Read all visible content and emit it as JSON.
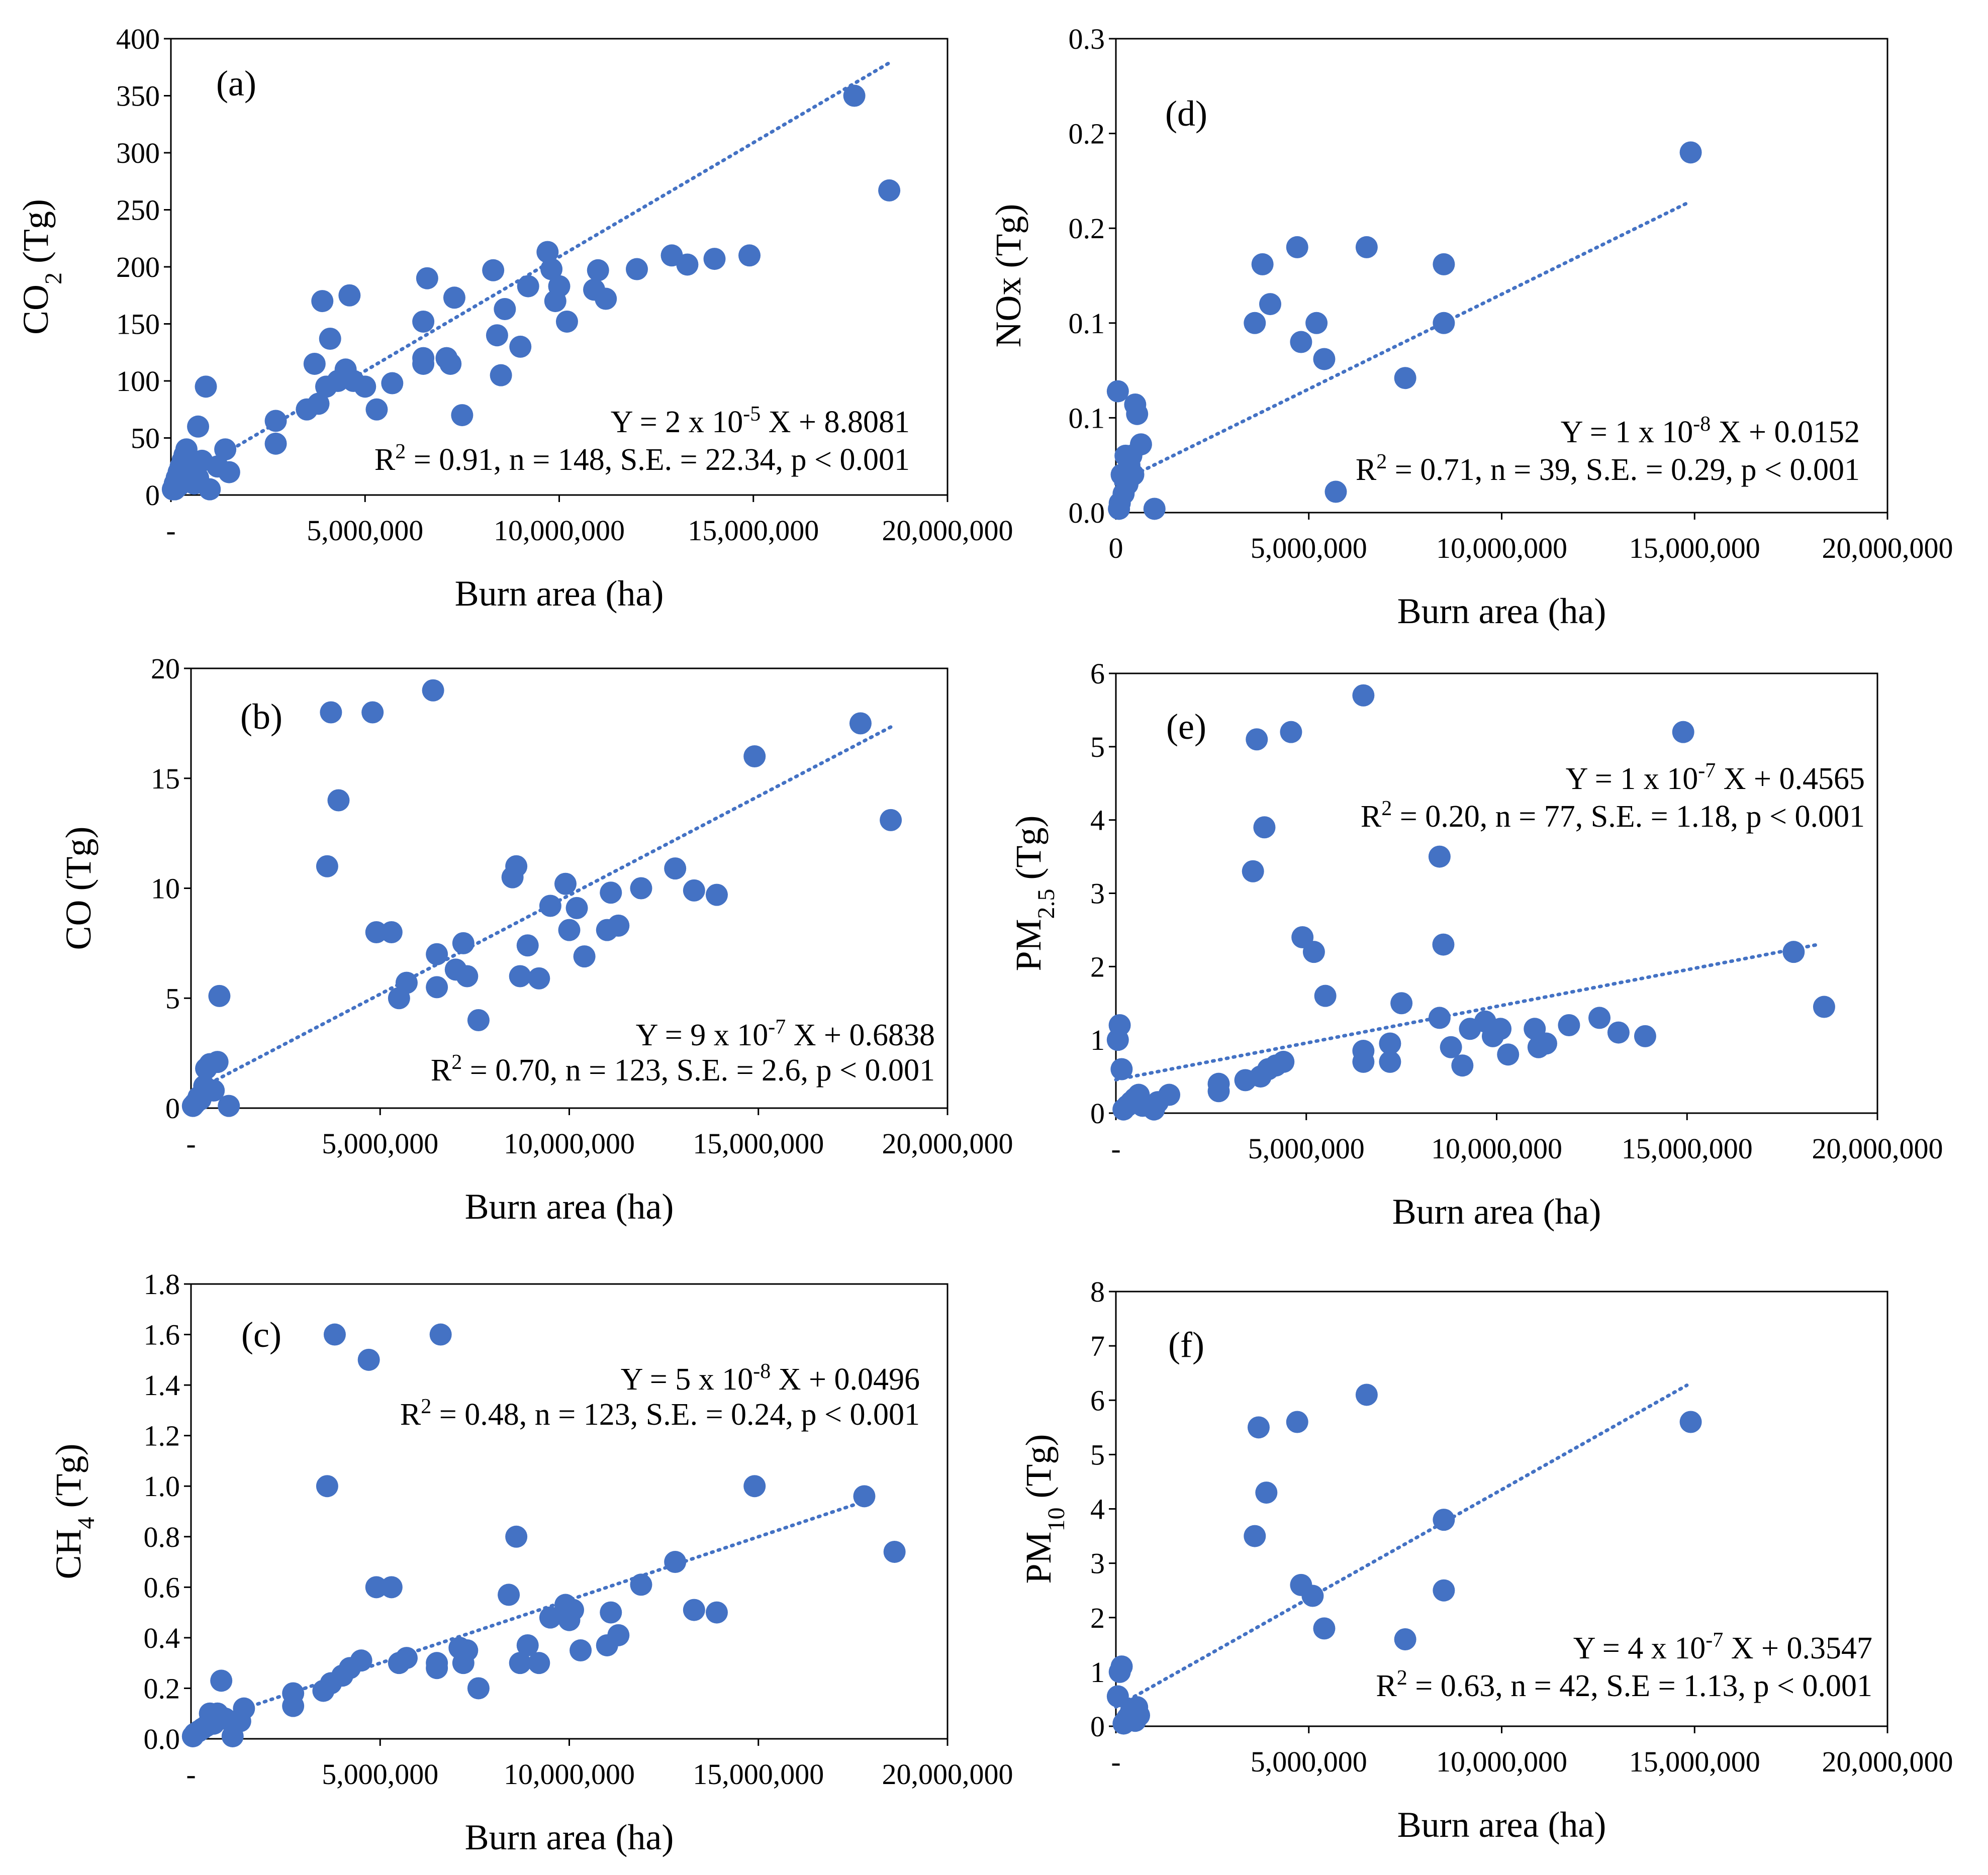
{
  "figure_title": "",
  "chart_data": [
    {
      "id": "a",
      "type": "scatter",
      "panel_label": "(a)",
      "ylabel_main": "CO",
      "ylabel_sub": "2",
      "ylabel_tail": " (Tg)",
      "xlabel": "Burn area (ha)",
      "xlim": [
        0,
        20000000
      ],
      "ylim": [
        0,
        400
      ],
      "xticks": [
        0,
        5000000,
        10000000,
        15000000,
        20000000
      ],
      "xtick_labels": [
        "-",
        "5,000,000",
        "10,000,000",
        "15,000,000",
        "20,000,000"
      ],
      "yticks": [
        0,
        50,
        100,
        150,
        200,
        250,
        300,
        350,
        400
      ],
      "ytick_labels": [
        "0",
        "50",
        "100",
        "150",
        "200",
        "250",
        "300",
        "350",
        "400"
      ],
      "eq_line1": "Y = 2 x 10",
      "eq_exp": "-5",
      "eq_tail": " X + 8.8081",
      "r2_main": "R",
      "r2_sup": "2",
      "r2_tail": " = 0.91, n = 148, S.E. = 22.34, p < 0.001",
      "trend": {
        "slope": 2e-05,
        "intercept": 8.8081,
        "x_start": 0,
        "x_end": 18500000
      },
      "x": [
        50000,
        100000,
        150000,
        200000,
        250000,
        300000,
        350000,
        400000,
        450000,
        500000,
        550000,
        600000,
        700000,
        800000,
        900000,
        1000000,
        1200000,
        1400000,
        1500000,
        100000,
        200000,
        300000,
        400000,
        500000,
        600000,
        700000,
        2700000,
        2700000,
        3500000,
        3700000,
        3800000,
        3900000,
        4000000,
        4100000,
        4300000,
        4500000,
        4600000,
        4700000,
        5000000,
        5300000,
        5700000,
        6500000,
        6500000,
        6600000,
        7100000,
        7200000,
        7300000,
        7500000,
        8300000,
        8400000,
        8500000,
        8600000,
        9000000,
        9200000,
        9700000,
        9800000,
        9900000,
        10000000,
        10200000,
        10900000,
        11000000,
        11200000,
        12000000,
        12900000,
        13300000,
        14000000,
        14900000,
        17600000,
        18500000,
        6500000
      ],
      "y": [
        5,
        10,
        15,
        20,
        25,
        30,
        35,
        40,
        30,
        25,
        20,
        15,
        60,
        30,
        95,
        5,
        25,
        40,
        20,
        5,
        8,
        12,
        18,
        22,
        10,
        15,
        45,
        65,
        75,
        115,
        80,
        170,
        95,
        137,
        100,
        110,
        175,
        100,
        95,
        75,
        98,
        115,
        152,
        190,
        120,
        115,
        173,
        70,
        197,
        140,
        105,
        163,
        130,
        183,
        213,
        198,
        170,
        183,
        152,
        180,
        197,
        172,
        198,
        210,
        202,
        207,
        210,
        350,
        267,
        120
      ]
    },
    {
      "id": "b",
      "type": "scatter",
      "panel_label": "(b)",
      "ylabel_main": "CO",
      "ylabel_sub": "",
      "ylabel_tail": " (Tg)",
      "xlabel": "Burn area (ha)",
      "xlim": [
        0,
        20000000
      ],
      "ylim": [
        0,
        20
      ],
      "xticks": [
        0,
        5000000,
        10000000,
        15000000,
        20000000
      ],
      "xtick_labels": [
        "-",
        "5,000,000",
        "10,000,000",
        "15,000,000",
        "20,000,000"
      ],
      "yticks": [
        0,
        5,
        10,
        15,
        20
      ],
      "ytick_labels": [
        "0",
        "5",
        "10",
        "15",
        "20"
      ],
      "eq_line1": "Y = 9 x 10",
      "eq_exp": "-7",
      "eq_tail": " X + 0.6838",
      "r2_main": "R",
      "r2_sup": "2",
      "r2_tail": " = 0.70, n = 123, S.E. = 2.6, p < 0.001",
      "trend": {
        "slope": 9e-07,
        "intercept": 0.6838,
        "x_start": 0,
        "x_end": 18500000
      },
      "x": [
        50000,
        100000,
        150000,
        200000,
        250000,
        300000,
        350000,
        400000,
        500000,
        600000,
        700000,
        750000,
        1000000,
        3600000,
        3700000,
        3900000,
        4800000,
        4900000,
        5300000,
        5500000,
        5700000,
        6400000,
        6500000,
        6500000,
        7000000,
        7200000,
        7300000,
        7600000,
        8500000,
        8600000,
        8700000,
        8900000,
        9200000,
        9500000,
        9900000,
        10000000,
        10200000,
        10400000,
        11000000,
        11100000,
        11300000,
        11900000,
        12800000,
        13300000,
        13900000,
        14900000,
        17700000,
        18500000
      ],
      "y": [
        0.1,
        0.2,
        0.3,
        0.5,
        0.4,
        0.6,
        1.0,
        1.8,
        2.0,
        0.8,
        2.1,
        5.1,
        0.1,
        11,
        18,
        14,
        18,
        8,
        8,
        5,
        5.7,
        19,
        7,
        5.5,
        6.3,
        7.5,
        6,
        4,
        10.5,
        11,
        6,
        7.4,
        5.9,
        9.2,
        10.2,
        8.1,
        9.1,
        6.9,
        8.1,
        9.8,
        8.3,
        10,
        10.9,
        9.9,
        9.7,
        16,
        17.5,
        13.1
      ]
    },
    {
      "id": "c",
      "type": "scatter",
      "panel_label": "(c)",
      "ylabel_main": "CH",
      "ylabel_sub": "4",
      "ylabel_tail": " (Tg)",
      "xlabel": "Burn area (ha)",
      "xlim": [
        0,
        20000000
      ],
      "ylim": [
        0,
        1.8
      ],
      "xticks": [
        0,
        5000000,
        10000000,
        15000000,
        20000000
      ],
      "xtick_labels": [
        "-",
        "5,000,000",
        "10,000,000",
        "15,000,000",
        "20,000,000"
      ],
      "yticks": [
        0,
        0.2,
        0.4,
        0.6,
        0.8,
        1.0,
        1.2,
        1.4,
        1.6,
        1.8
      ],
      "ytick_labels": [
        "0.0",
        "0.2",
        "0.4",
        "0.6",
        "0.8",
        "1.0",
        "1.2",
        "1.4",
        "1.6",
        "1.8"
      ],
      "eq_line1": "Y = 5 x 10",
      "eq_exp": "-8",
      "eq_tail": " X + 0.0496",
      "r2_main": "R",
      "r2_sup": "2",
      "r2_tail": " = 0.48, n = 123, S.E. = 0.24, p < 0.001",
      "trend": {
        "slope": 5e-08,
        "intercept": 0.0496,
        "x_start": 0,
        "x_end": 18000000
      },
      "x": [
        50000,
        100000,
        200000,
        300000,
        400000,
        500000,
        600000,
        700000,
        800000,
        900000,
        1100000,
        1300000,
        1400000,
        2700000,
        2700000,
        3500000,
        3600000,
        3700000,
        3800000,
        4000000,
        4200000,
        4500000,
        4700000,
        4900000,
        5300000,
        5500000,
        5700000,
        6500000,
        6500000,
        6600000,
        7100000,
        7200000,
        7300000,
        7600000,
        8400000,
        8600000,
        8700000,
        8900000,
        9200000,
        9500000,
        9900000,
        10000000,
        10100000,
        10300000,
        11000000,
        11100000,
        11300000,
        11900000,
        12800000,
        13300000,
        13900000,
        14900000,
        17800000,
        18600000
      ],
      "y": [
        0.01,
        0.02,
        0.03,
        0.04,
        0.05,
        0.1,
        0.06,
        0.1,
        0.23,
        0.08,
        0.01,
        0.07,
        0.12,
        0.13,
        0.18,
        0.19,
        1.0,
        0.22,
        1.6,
        0.25,
        0.28,
        0.31,
        1.5,
        0.6,
        0.6,
        0.3,
        0.32,
        0.3,
        0.28,
        1.6,
        0.36,
        0.3,
        0.35,
        0.2,
        0.57,
        0.8,
        0.3,
        0.37,
        0.3,
        0.48,
        0.53,
        0.47,
        0.51,
        0.35,
        0.37,
        0.5,
        0.41,
        0.61,
        0.7,
        0.51,
        0.5,
        1.0,
        0.96,
        0.74
      ]
    },
    {
      "id": "d",
      "type": "scatter",
      "panel_label": "(d)",
      "ylabel_main": "NOx",
      "ylabel_sub": "",
      "ylabel_tail": " (Tg)",
      "xlabel": "Burn area (ha)",
      "xlim": [
        0,
        20000000
      ],
      "ylim": [
        0,
        0.25
      ],
      "xticks": [
        0,
        5000000,
        10000000,
        15000000,
        20000000
      ],
      "xtick_labels": [
        "0",
        "5,000,000",
        "10,000,000",
        "15,000,000",
        "20,000,000"
      ],
      "yticks": [
        0,
        0.05,
        0.1,
        0.15,
        0.2,
        0.25
      ],
      "ytick_labels": [
        "0.0",
        "0.1",
        "0.1",
        "0.2",
        "0.2",
        "0.3"
      ],
      "eq_line1": "Y = 1 x 10",
      "eq_exp": "-8",
      "eq_tail": " X + 0.0152",
      "r2_main": "R",
      "r2_sup": "2",
      "r2_tail": " = 0.71, n = 39, S.E. = 0.29, p < 0.001",
      "trend": {
        "slope": 1e-08,
        "intercept": 0.0152,
        "x_start": 0,
        "x_end": 14800000
      },
      "x": [
        50000,
        80000,
        100000,
        150000,
        200000,
        250000,
        300000,
        350000,
        400000,
        450000,
        500000,
        550000,
        650000,
        1000000,
        3600000,
        3800000,
        4000000,
        4700000,
        4800000,
        5200000,
        5400000,
        5700000,
        6500000,
        7500000,
        8500000,
        8500000,
        14900000
      ],
      "y": [
        0.064,
        0.002,
        0.005,
        0.02,
        0.01,
        0.03,
        0.015,
        0.025,
        0.03,
        0.02,
        0.057,
        0.052,
        0.036,
        0.002,
        0.1,
        0.131,
        0.11,
        0.14,
        0.09,
        0.1,
        0.081,
        0.011,
        0.14,
        0.071,
        0.131,
        0.1,
        0.19
      ]
    },
    {
      "id": "e",
      "type": "scatter",
      "panel_label": "(e)",
      "ylabel_main": "PM",
      "ylabel_sub": "2.5",
      "ylabel_tail": " (Tg)",
      "xlabel": "Burn area (ha)",
      "xlim": [
        0,
        20000000
      ],
      "ylim": [
        0,
        6
      ],
      "xticks": [
        0,
        5000000,
        10000000,
        15000000,
        20000000
      ],
      "xtick_labels": [
        "-",
        "5,000,000",
        "10,000,000",
        "15,000,000",
        "20,000,000"
      ],
      "yticks": [
        0,
        1,
        2,
        3,
        4,
        5,
        6
      ],
      "ytick_labels": [
        "0",
        "1",
        "2",
        "3",
        "4",
        "5",
        "6"
      ],
      "eq_line1": "Y = 1 x 10",
      "eq_exp": "-7",
      "eq_tail": " X + 0.4565",
      "r2_main": "R",
      "r2_sup": "2",
      "r2_tail": " = 0.20, n = 77, S.E. = 1.18, p < 0.001",
      "trend": {
        "slope": 1e-07,
        "intercept": 0.4565,
        "x_start": 0,
        "x_end": 18500000
      },
      "x": [
        50000,
        100000,
        150000,
        200000,
        300000,
        400000,
        500000,
        600000,
        700000,
        1000000,
        1100000,
        1400000,
        2700000,
        2700000,
        3400000,
        3600000,
        3700000,
        3800000,
        3900000,
        4000000,
        4200000,
        4400000,
        4600000,
        4900000,
        5200000,
        5500000,
        6500000,
        6500000,
        6500000,
        7200000,
        7200000,
        7500000,
        8500000,
        8500000,
        8600000,
        8800000,
        9100000,
        9300000,
        9700000,
        9900000,
        10100000,
        10300000,
        11000000,
        11100000,
        11300000,
        11900000,
        12700000,
        13200000,
        13900000,
        14900000,
        17800000,
        18600000
      ],
      "y": [
        1.0,
        1.2,
        0.6,
        0.05,
        0.1,
        0.15,
        0.2,
        0.25,
        0.1,
        0.05,
        0.15,
        0.25,
        0.3,
        0.4,
        0.45,
        3.3,
        5.1,
        0.5,
        3.9,
        0.6,
        0.65,
        0.7,
        5.2,
        2.4,
        2.2,
        1.6,
        0.85,
        0.7,
        5.7,
        0.95,
        0.7,
        1.5,
        3.5,
        1.3,
        2.3,
        0.9,
        0.65,
        1.15,
        1.25,
        1.05,
        1.15,
        0.8,
        1.15,
        0.9,
        0.95,
        1.2,
        1.3,
        1.1,
        1.05,
        5.2,
        2.2,
        1.45
      ]
    },
    {
      "id": "f",
      "type": "scatter",
      "panel_label": "(f)",
      "ylabel_main": "PM",
      "ylabel_sub": "10",
      "ylabel_tail": " (Tg)",
      "xlabel": "Burn area (ha)",
      "xlim": [
        0,
        20000000
      ],
      "ylim": [
        0,
        8
      ],
      "xticks": [
        0,
        5000000,
        10000000,
        15000000,
        20000000
      ],
      "xtick_labels": [
        "-",
        "5,000,000",
        "10,000,000",
        "15,000,000",
        "20,000,000"
      ],
      "yticks": [
        0,
        1,
        2,
        3,
        4,
        5,
        6,
        7,
        8
      ],
      "ytick_labels": [
        "0",
        "1",
        "2",
        "3",
        "4",
        "5",
        "6",
        "7",
        "8"
      ],
      "eq_line1": "Y = 4 x 10",
      "eq_exp": "-7",
      "eq_tail": " X + 0.3547",
      "r2_main": "R",
      "r2_sup": "2",
      "r2_tail": " = 0.63, n = 42, S.E = 1.13, p < 0.001",
      "trend": {
        "slope": 4e-07,
        "intercept": 0.3547,
        "x_start": 0,
        "x_end": 14800000
      },
      "x": [
        50000,
        100000,
        150000,
        200000,
        250000,
        300000,
        350000,
        400000,
        450000,
        500000,
        550000,
        600000,
        3600000,
        3700000,
        3900000,
        4700000,
        4800000,
        5100000,
        5400000,
        6500000,
        7500000,
        8500000,
        8500000,
        14900000
      ],
      "y": [
        0.55,
        1.0,
        1.1,
        0.05,
        0.1,
        0.15,
        0.2,
        0.3,
        0.25,
        0.1,
        0.35,
        0.2,
        3.5,
        5.5,
        4.3,
        5.6,
        2.6,
        2.4,
        1.8,
        6.1,
        1.6,
        3.8,
        2.5,
        5.6
      ]
    }
  ]
}
